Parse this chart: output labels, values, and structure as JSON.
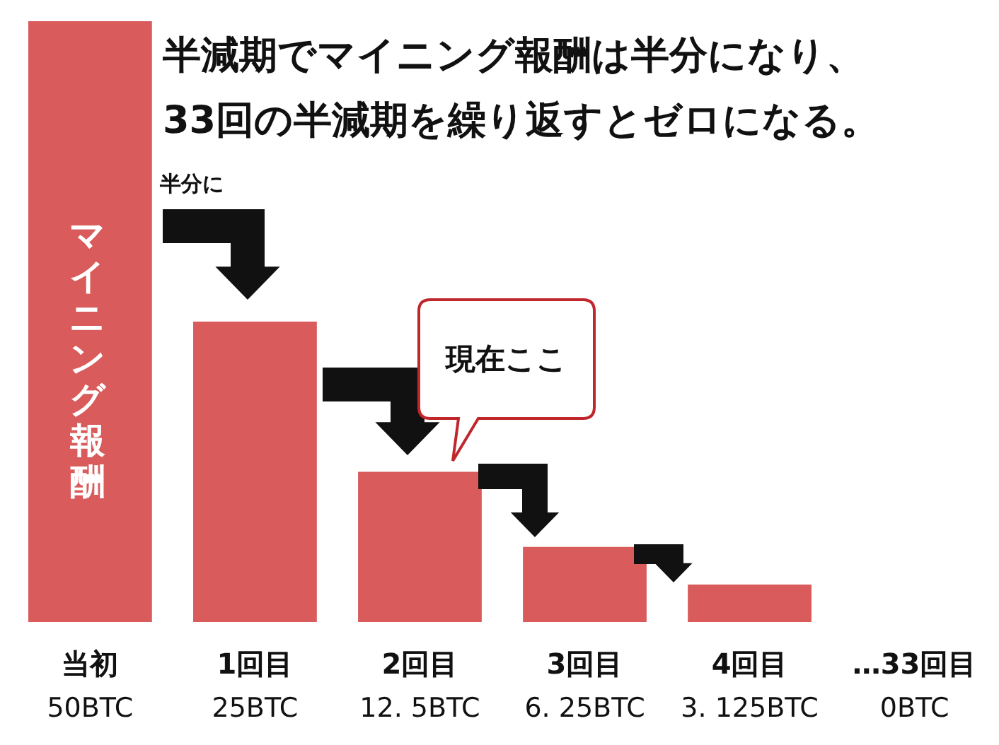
{
  "chart_data": {
    "type": "bar",
    "title": "半減期でマイニング報酬は半分になり、\n33回の半減期を繰り返すとゼロになる。",
    "categories": [
      "当初",
      "1回目",
      "2回目",
      "3回目",
      "4回目",
      "…33回目"
    ],
    "values": [
      50,
      25,
      12.5,
      6.25,
      3.125,
      0
    ],
    "value_labels": [
      "50BTC",
      "25BTC",
      "12. 5BTC",
      "6. 25BTC",
      "3. 125BTC",
      "0BTC"
    ],
    "color": "#d95b5b",
    "annotations": [
      "マイニング報酬",
      "半分に",
      "現在ここ"
    ]
  }
}
